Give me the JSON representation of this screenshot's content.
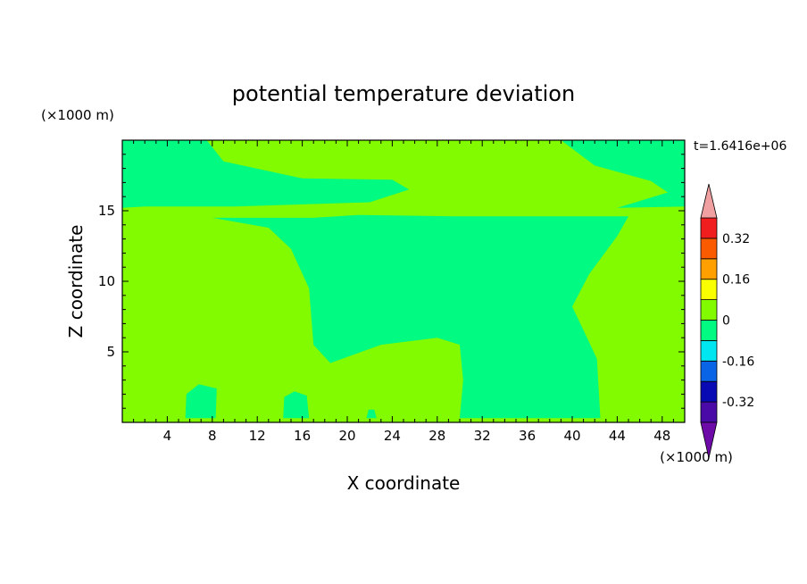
{
  "chart_data": {
    "type": "heatmap",
    "title": "potential temperature deviation",
    "xlabel": "X coordinate",
    "ylabel": "Z coordinate",
    "x_unit": "(×1000 m)",
    "y_unit": "(×1000 m)",
    "time_label": "t=1.6416e+06",
    "xlim": [
      0,
      50
    ],
    "ylim": [
      0,
      20
    ],
    "x_ticks": [
      4,
      8,
      12,
      16,
      20,
      24,
      28,
      32,
      36,
      40,
      44,
      48
    ],
    "y_ticks": [
      5,
      10,
      15
    ],
    "colorbar": {
      "levels": [
        -0.4,
        -0.32,
        -0.24,
        -0.16,
        -0.08,
        0,
        0.08,
        0.16,
        0.24,
        0.32,
        0.4
      ],
      "colors": [
        "#4a0aa8",
        "#0a0ab4",
        "#0a64e6",
        "#00e6f0",
        "#00fa82",
        "#82fa00",
        "#faff00",
        "#ffa000",
        "#fa5a00",
        "#f01e1e"
      ],
      "under_color": "#6e0aa8",
      "over_color": "#f0a0a0",
      "tick_labels": [
        "0.32",
        "0.16",
        "0",
        "-0.16",
        "-0.32"
      ],
      "tick_values": [
        0.32,
        0.16,
        0,
        -0.16,
        -0.32
      ]
    },
    "field": {
      "background_range": [
        0,
        0.08
      ],
      "background_color": "#82fa00",
      "negative_range": [
        -0.08,
        0
      ],
      "negative_color": "#00fa82",
      "negative_regions": [
        {
          "name": "upper-layer",
          "polygon": [
            [
              0,
              20
            ],
            [
              7.5,
              20
            ],
            [
              9,
              18.5
            ],
            [
              16,
              17.3
            ],
            [
              24,
              17.2
            ],
            [
              25.5,
              16.5
            ],
            [
              22,
              15.6
            ],
            [
              10,
              15.3
            ],
            [
              2,
              15.3
            ],
            [
              0,
              15.2
            ]
          ]
        },
        {
          "name": "upper-right",
          "polygon": [
            [
              39,
              20
            ],
            [
              50,
              20
            ],
            [
              50,
              15.3
            ],
            [
              44,
              15.2
            ],
            [
              48.5,
              16.3
            ],
            [
              47,
              17.1
            ],
            [
              42,
              18.2
            ]
          ]
        },
        {
          "name": "central-plume",
          "polygon": [
            [
              17,
              14.5
            ],
            [
              21,
              14.7
            ],
            [
              30,
              14.6
            ],
            [
              45,
              14.6
            ],
            [
              44,
              13.2
            ],
            [
              41.5,
              10.5
            ],
            [
              40,
              8.2
            ],
            [
              41.2,
              6.2
            ],
            [
              42.2,
              4.5
            ],
            [
              42.5,
              0.3
            ],
            [
              30,
              0.3
            ],
            [
              30.3,
              3
            ],
            [
              30,
              5.5
            ],
            [
              28,
              6
            ],
            [
              23,
              5.5
            ],
            [
              18.5,
              4.2
            ],
            [
              17,
              5.5
            ],
            [
              16.6,
              9.5
            ],
            [
              15,
              12.3
            ],
            [
              13,
              13.8
            ],
            [
              8,
              14.5
            ]
          ]
        },
        {
          "name": "bubble-6",
          "polygon": [
            [
              5.6,
              0.3
            ],
            [
              5.7,
              2
            ],
            [
              6.8,
              2.7
            ],
            [
              8.4,
              2.4
            ],
            [
              8.3,
              0.3
            ]
          ]
        },
        {
          "name": "bubble-15",
          "polygon": [
            [
              14.3,
              0.3
            ],
            [
              14.4,
              1.8
            ],
            [
              15.3,
              2.2
            ],
            [
              16.4,
              1.9
            ],
            [
              16.6,
              0.3
            ]
          ]
        },
        {
          "name": "bubble-22",
          "polygon": [
            [
              21.7,
              0.3
            ],
            [
              21.9,
              0.9
            ],
            [
              22.4,
              0.9
            ],
            [
              22.6,
              0.3
            ]
          ]
        }
      ]
    }
  }
}
